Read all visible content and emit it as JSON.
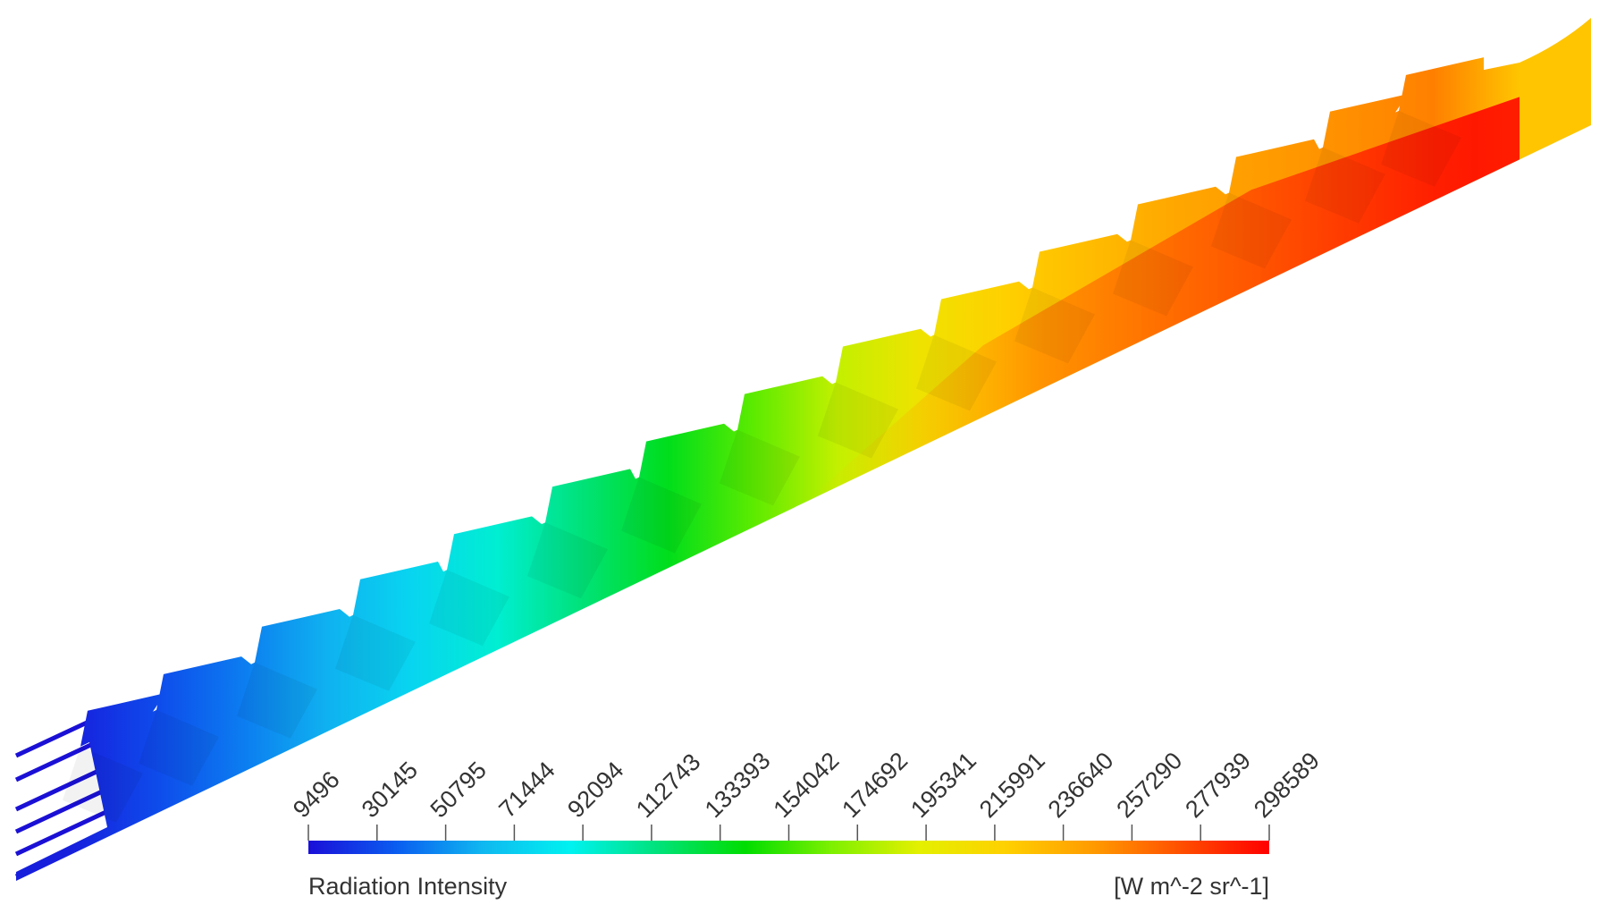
{
  "chart_data": {
    "type": "heatmap",
    "title": "",
    "variable_label": "Radiation Intensity",
    "units_label": "[W m^-2 sr^-1]",
    "colormap": [
      "#1a0fd8",
      "#0a5cf0",
      "#0fb8f0",
      "#00f2f0",
      "#00e27a",
      "#00dd00",
      "#7ef000",
      "#e4f000",
      "#ffd000",
      "#ff9a00",
      "#ff4e00",
      "#ff0000"
    ],
    "legend_range": [
      9496,
      298589
    ],
    "legend_ticks": [
      "9496",
      "30145",
      "50795",
      "71444",
      "92094",
      "112743",
      "133393",
      "154042",
      "174692",
      "195341",
      "215991",
      "236640",
      "257290",
      "277939",
      "298589"
    ],
    "legend_tick_values": [
      9496,
      30145,
      50795,
      71444,
      92094,
      112743,
      133393,
      154042,
      174692,
      195341,
      215991,
      236640,
      257290,
      277939,
      298589
    ],
    "field": {
      "description_values_along_channel": [
        15000,
        30000,
        45000,
        60000,
        75000,
        95000,
        115000,
        135000,
        160000,
        185000,
        205000,
        220000,
        230000,
        240000,
        245000,
        250000,
        255000,
        225000
      ],
      "wall_side_max": 298589
    }
  }
}
